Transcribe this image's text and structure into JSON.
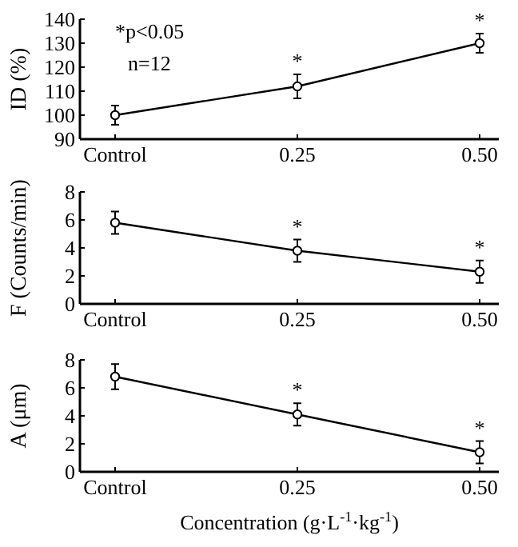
{
  "chart_data": [
    {
      "type": "line",
      "ylabel": "ID (%)",
      "categories": [
        "Control",
        "0.25",
        "0.50"
      ],
      "series": [
        {
          "color": "#000000",
          "values": [
            100,
            112,
            130
          ],
          "errors": [
            4,
            5,
            4
          ]
        }
      ],
      "ylim": [
        90,
        140
      ],
      "yticks": [
        90,
        100,
        110,
        120,
        130,
        140
      ],
      "marker": "circle",
      "line_style": "solid",
      "grid": false,
      "annotations": [
        "*p<0.05",
        "n=12",
        {
          "text": "*",
          "x": "0.25",
          "y": 112
        },
        {
          "text": "*",
          "x": "0.50",
          "y": 130
        }
      ]
    },
    {
      "type": "line",
      "ylabel": "F (Counts/min)",
      "categories": [
        "Control",
        "0.25",
        "0.50"
      ],
      "series": [
        {
          "color": "#000000",
          "values": [
            5.8,
            3.8,
            2.3
          ],
          "errors": [
            0.8,
            0.8,
            0.8
          ]
        }
      ],
      "ylim": [
        0,
        8
      ],
      "yticks": [
        0,
        2,
        4,
        6,
        8
      ],
      "marker": "circle",
      "line_style": "solid",
      "grid": false,
      "annotations": [
        {
          "text": "*",
          "x": "0.25",
          "y": 3.8
        },
        {
          "text": "*",
          "x": "0.50",
          "y": 2.3
        }
      ]
    },
    {
      "type": "line",
      "ylabel": "A (μm)",
      "xlabel": "Concentration (g·L$^{-1}$·kg$^{-1}$)",
      "categories": [
        "Control",
        "0.25",
        "0.50"
      ],
      "series": [
        {
          "color": "#000000",
          "values": [
            6.8,
            4.1,
            1.4
          ],
          "errors": [
            0.9,
            0.8,
            0.8
          ]
        }
      ],
      "ylim": [
        0,
        8
      ],
      "yticks": [
        0,
        2,
        4,
        6,
        8
      ],
      "marker": "circle",
      "line_style": "solid",
      "grid": false,
      "annotations": [
        {
          "text": "*",
          "x": "0.25",
          "y": 4.1
        },
        {
          "text": "*",
          "x": "0.50",
          "y": 1.4
        }
      ]
    }
  ]
}
